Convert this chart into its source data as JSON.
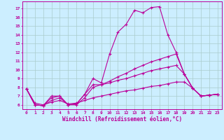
{
  "xlabel": "Windchill (Refroidissement éolien,°C)",
  "background_color": "#cceeff",
  "line_color": "#bb0099",
  "grid_color": "#aacccc",
  "xlim": [
    -0.5,
    23.5
  ],
  "ylim": [
    5.5,
    17.8
  ],
  "xticks": [
    0,
    1,
    2,
    3,
    4,
    5,
    6,
    7,
    8,
    9,
    10,
    11,
    12,
    13,
    14,
    15,
    16,
    17,
    18,
    19,
    20,
    21,
    22,
    23
  ],
  "yticks": [
    6,
    7,
    8,
    9,
    10,
    11,
    12,
    13,
    14,
    15,
    16,
    17
  ],
  "series": [
    [
      7.8,
      6.0,
      5.9,
      7.0,
      7.0,
      6.0,
      6.1,
      7.2,
      9.0,
      8.5,
      11.8,
      14.3,
      15.2,
      16.8,
      16.5,
      17.1,
      17.2,
      14.0,
      12.0,
      9.5,
      7.9,
      7.0,
      7.1,
      7.2
    ],
    [
      7.8,
      6.0,
      5.9,
      6.5,
      6.8,
      6.0,
      6.0,
      6.8,
      8.0,
      8.3,
      8.7,
      9.2,
      9.6,
      10.1,
      10.5,
      10.9,
      11.2,
      11.5,
      11.8,
      9.5,
      7.9,
      7.0,
      7.1,
      7.2
    ],
    [
      7.8,
      6.0,
      5.9,
      6.8,
      7.0,
      6.0,
      6.1,
      7.2,
      8.3,
      8.3,
      8.5,
      8.8,
      9.0,
      9.3,
      9.6,
      9.9,
      10.1,
      10.3,
      10.5,
      9.5,
      7.9,
      7.0,
      7.1,
      7.2
    ],
    [
      7.8,
      6.2,
      6.0,
      6.3,
      6.5,
      6.1,
      6.2,
      6.5,
      6.8,
      7.0,
      7.2,
      7.4,
      7.6,
      7.7,
      7.9,
      8.1,
      8.2,
      8.4,
      8.6,
      8.6,
      7.9,
      7.0,
      7.1,
      7.2
    ]
  ]
}
